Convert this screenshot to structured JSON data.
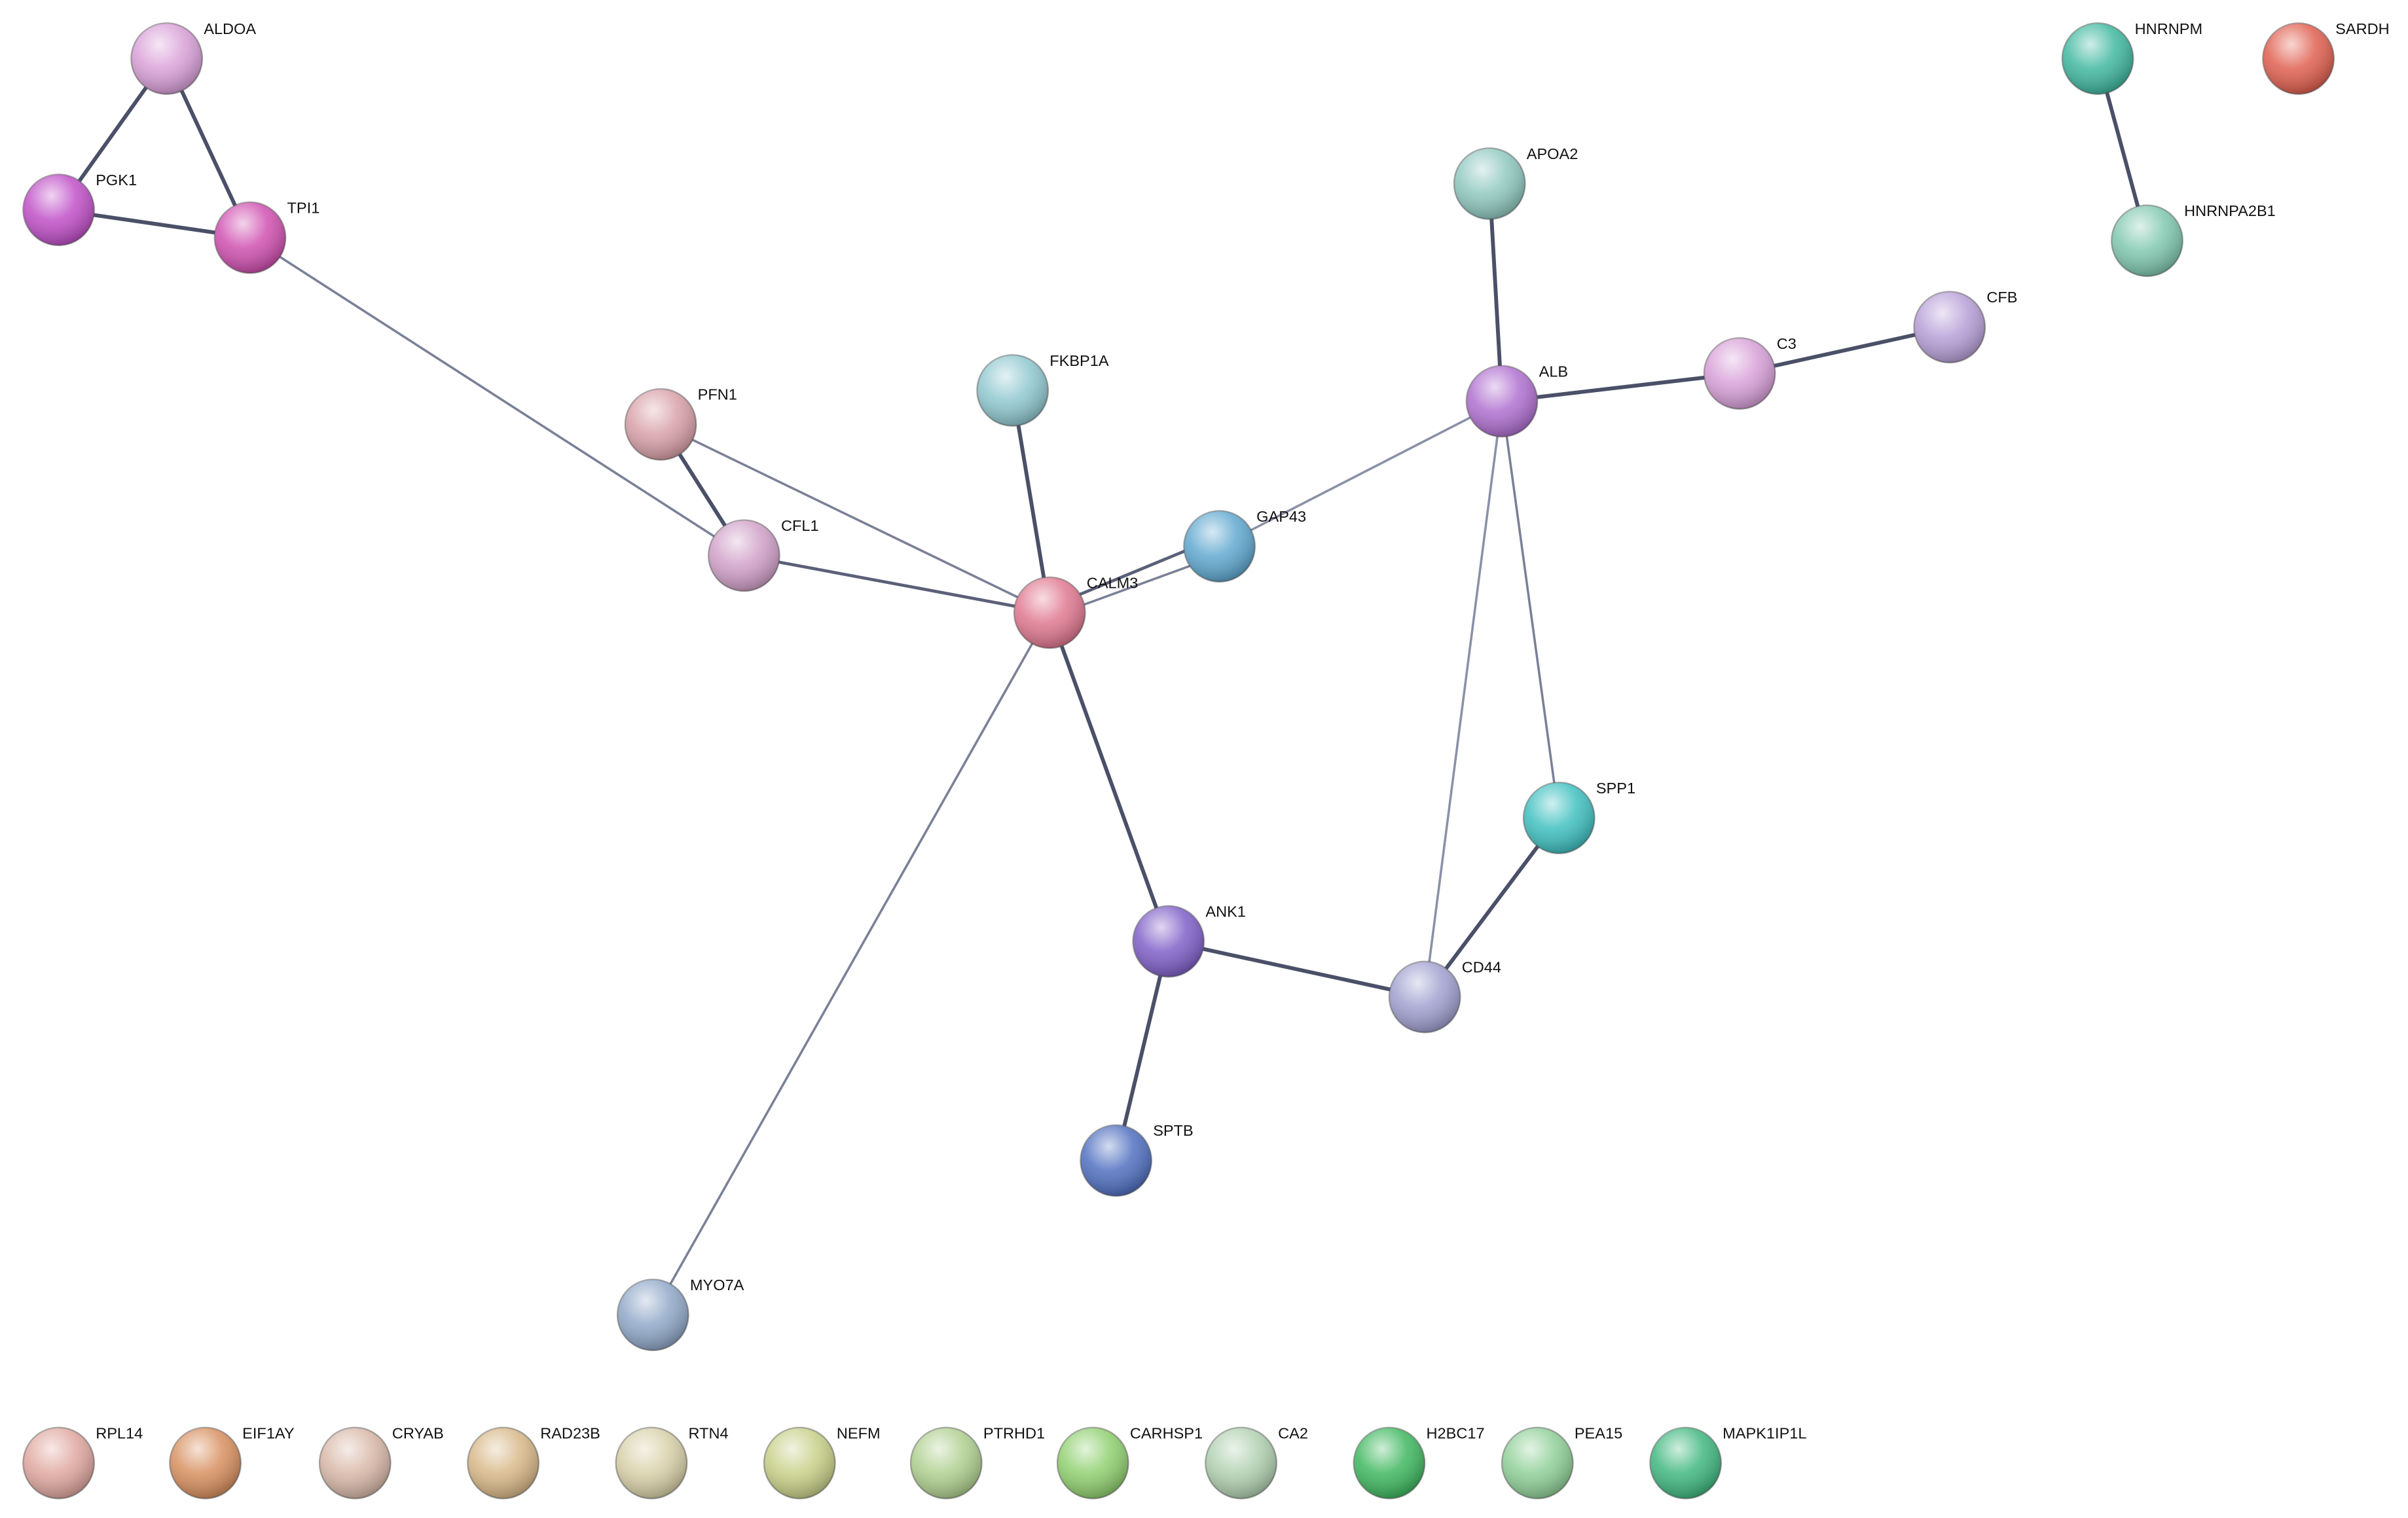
{
  "nodes": [
    {
      "label": "ALDOA"
    },
    {
      "label": "PGK1"
    },
    {
      "label": "TPI1"
    },
    {
      "label": "PFN1"
    },
    {
      "label": "CFL1"
    },
    {
      "label": "FKBP1A"
    },
    {
      "label": "CALM3"
    },
    {
      "label": "GAP43"
    },
    {
      "label": "APOA2"
    },
    {
      "label": "ALB"
    },
    {
      "label": "C3"
    },
    {
      "label": "CFB"
    },
    {
      "label": "SPP1"
    },
    {
      "label": "ANK1"
    },
    {
      "label": "CD44"
    },
    {
      "label": "SPTB"
    },
    {
      "label": "MYO7A"
    },
    {
      "label": "HNRNPM"
    },
    {
      "label": "SARDH"
    },
    {
      "label": "HNRNPA2B1"
    },
    {
      "label": "RPL14"
    },
    {
      "label": "EIF1AY"
    },
    {
      "label": "CRYAB"
    },
    {
      "label": "RAD23B"
    },
    {
      "label": "RTN4"
    },
    {
      "label": "NEFM"
    },
    {
      "label": "PTRHD1"
    },
    {
      "label": "CARHSP1"
    },
    {
      "label": "CA2"
    },
    {
      "label": "H2BC17"
    },
    {
      "label": "PEA15"
    },
    {
      "label": "MAPK1IP1L"
    }
  ]
}
